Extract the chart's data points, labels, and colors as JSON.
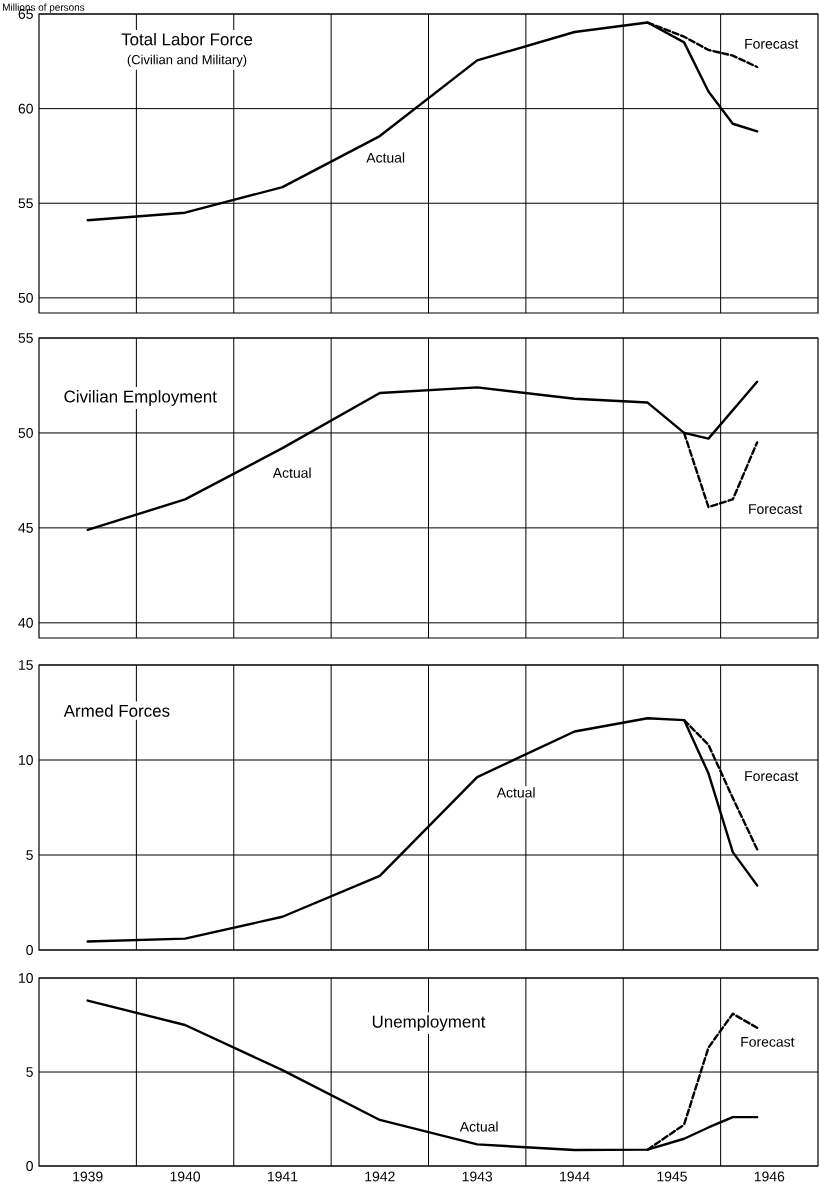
{
  "chart_data": [
    {
      "type": "line",
      "title": "Total Labor Force",
      "subtitle": "(Civilian and Military)",
      "ylabel": "Millions of persons",
      "xlim": [
        1938.5,
        1946.5
      ],
      "xticks": [
        1939,
        1940,
        1941,
        1942,
        1943,
        1944,
        1945,
        1946,
        {
          "value": 1939.5,
          "label": null
        },
        {
          "value": 1940.5,
          "label": null
        },
        {
          "value": 1941.5,
          "label": null
        },
        {
          "value": 1942.5,
          "label": null
        },
        {
          "value": 1943.5,
          "label": null
        },
        {
          "value": 1944.5,
          "label": null
        },
        {
          "value": 1945.5,
          "label": null
        }
      ],
      "ylim": [
        49.2,
        65
      ],
      "yticks": [
        50,
        55,
        60,
        65
      ],
      "grid": true,
      "tick_labels": "y",
      "series": [
        {
          "name": "Actual",
          "color": "#000000",
          "line_style": "solid",
          "x": [
            1939,
            1940,
            1941,
            1942,
            1943,
            1944,
            1944.75,
            1945.125,
            1945.375,
            1945.625,
            1945.875
          ],
          "values": [
            54.1,
            54.5,
            55.85,
            58.55,
            62.55,
            64.05,
            64.55,
            63.5,
            60.9,
            59.2,
            58.8
          ]
        },
        {
          "name": "Forecast",
          "color": "#000000",
          "line_style": "dashed",
          "x": [
            1944.75,
            1945.125,
            1945.375,
            1945.625,
            1945.875
          ],
          "values": [
            64.55,
            63.8,
            63.1,
            62.8,
            62.2
          ]
        }
      ]
    },
    {
      "type": "line",
      "title": "Civilian Employment",
      "xlim": [
        1938.5,
        1946.5
      ],
      "xticks": [
        1939,
        1940,
        1941,
        1942,
        1943,
        1944,
        1945,
        1946,
        {
          "value": 1939.5,
          "label": null
        },
        {
          "value": 1940.5,
          "label": null
        },
        {
          "value": 1941.5,
          "label": null
        },
        {
          "value": 1942.5,
          "label": null
        },
        {
          "value": 1943.5,
          "label": null
        },
        {
          "value": 1944.5,
          "label": null
        },
        {
          "value": 1945.5,
          "label": null
        }
      ],
      "ylim": [
        39.2,
        55
      ],
      "yticks": [
        40,
        45,
        50,
        55
      ],
      "grid": true,
      "tick_labels": "y",
      "series": [
        {
          "name": "Actual",
          "color": "#000000",
          "line_style": "solid",
          "x": [
            1939,
            1940,
            1941,
            1942,
            1943,
            1944,
            1944.75,
            1945.125,
            1945.375,
            1945.625,
            1945.875
          ],
          "values": [
            44.9,
            46.5,
            49.2,
            52.1,
            52.4,
            51.8,
            51.6,
            50.0,
            49.7,
            51.2,
            52.7
          ]
        },
        {
          "name": "Forecast",
          "color": "#000000",
          "line_style": "dashed",
          "x": [
            1945.125,
            1945.375,
            1945.625,
            1945.875
          ],
          "values": [
            50.0,
            46.1,
            46.5,
            49.5
          ]
        }
      ]
    },
    {
      "type": "line",
      "title": "Armed Forces",
      "xlim": [
        1938.5,
        1946.5
      ],
      "xticks": [
        1939,
        1940,
        1941,
        1942,
        1943,
        1944,
        1945,
        1946,
        {
          "value": 1939.5,
          "label": null
        },
        {
          "value": 1940.5,
          "label": null
        },
        {
          "value": 1941.5,
          "label": null
        },
        {
          "value": 1942.5,
          "label": null
        },
        {
          "value": 1943.5,
          "label": null
        },
        {
          "value": 1944.5,
          "label": null
        },
        {
          "value": 1945.5,
          "label": null
        }
      ],
      "ylim": [
        0,
        15
      ],
      "yticks": [
        0,
        5,
        10,
        15
      ],
      "grid": true,
      "tick_labels": "y",
      "series": [
        {
          "name": "Actual",
          "color": "#000000",
          "line_style": "solid",
          "x": [
            1939,
            1940,
            1941,
            1942,
            1943,
            1944,
            1944.75,
            1945.125,
            1945.375,
            1945.625,
            1945.875
          ],
          "values": [
            0.45,
            0.6,
            1.75,
            3.9,
            9.1,
            11.5,
            12.2,
            12.1,
            9.3,
            5.15,
            3.4
          ]
        },
        {
          "name": "Forecast",
          "color": "#000000",
          "line_style": "dashed",
          "x": [
            1945.125,
            1945.375,
            1945.625,
            1945.875
          ],
          "values": [
            12.1,
            10.8,
            8.0,
            5.3
          ]
        }
      ]
    },
    {
      "type": "line",
      "title": "Unemployment",
      "xlim": [
        1938.5,
        1946.5
      ],
      "xticks": [
        1939,
        1940,
        1941,
        1942,
        1943,
        1944,
        1945,
        1946,
        {
          "value": 1939.5,
          "label": null
        },
        {
          "value": 1940.5,
          "label": null
        },
        {
          "value": 1941.5,
          "label": null
        },
        {
          "value": 1942.5,
          "label": null
        },
        {
          "value": 1943.5,
          "label": null
        },
        {
          "value": 1944.5,
          "label": null
        },
        {
          "value": 1945.5,
          "label": null
        }
      ],
      "ylim": [
        0,
        10
      ],
      "yticks": [
        0,
        5,
        10
      ],
      "grid": true,
      "series": [
        {
          "name": "Actual",
          "color": "#000000",
          "line_style": "solid",
          "x": [
            1939,
            1940,
            1941,
            1942,
            1943,
            1944,
            1944.75,
            1945.125,
            1945.375,
            1945.625,
            1945.875
          ],
          "values": [
            8.8,
            7.5,
            5.1,
            2.45,
            1.15,
            0.85,
            0.87,
            1.45,
            2.05,
            2.6,
            2.6
          ]
        },
        {
          "name": "Forecast",
          "color": "#000000",
          "line_style": "dashed",
          "x": [
            1944.75,
            1945.125,
            1945.375,
            1945.625,
            1945.875
          ],
          "values": [
            0.87,
            2.2,
            6.3,
            8.1,
            7.35
          ]
        }
      ]
    }
  ]
}
